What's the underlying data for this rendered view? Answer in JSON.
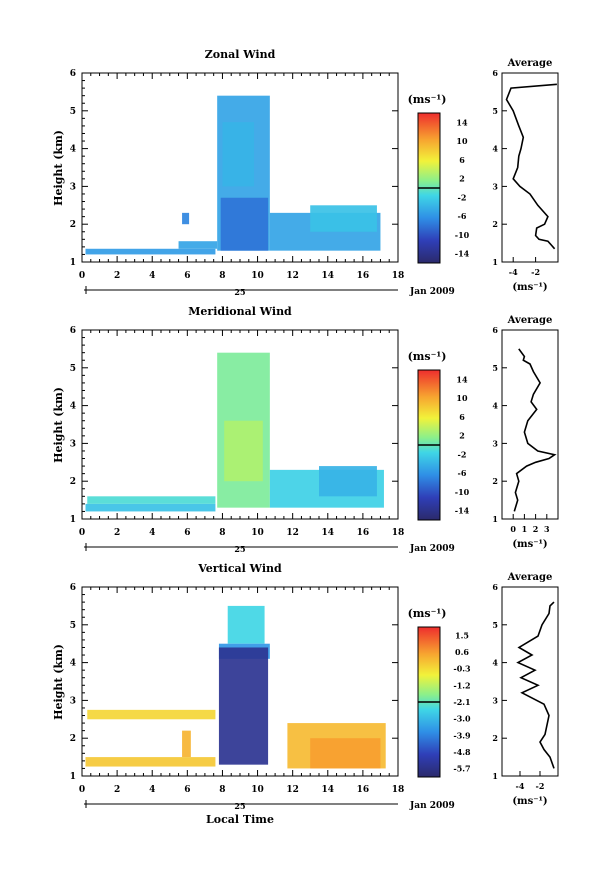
{
  "figure": {
    "shared_xlabel": "Local Time",
    "colorbar_unit": "(ms⁻¹)",
    "avg_unit": "(ms⁻¹)"
  },
  "chart_data": [
    {
      "type": "heatmap",
      "title": "Zonal Wind",
      "ylabel": "Height (km)",
      "xlim": [
        0,
        18
      ],
      "ylim": [
        1,
        6
      ],
      "xticks": [
        "0",
        "2",
        "4",
        "6",
        "8",
        "10",
        "12",
        "14",
        "16",
        "18"
      ],
      "yticks": [
        "1",
        "2",
        "3",
        "4",
        "5",
        "6"
      ],
      "date_marker": "25",
      "date_label": "Jan 2009",
      "colorbar": {
        "labels": [
          "14",
          "10",
          "6",
          "2",
          "-2",
          "-6",
          "-10",
          "-14"
        ],
        "range": [
          -16,
          16
        ],
        "ticks": [
          -14,
          -10,
          -6,
          -2,
          2,
          6,
          10,
          14
        ]
      },
      "data_regions": [
        {
          "x": [
            0.2,
            7.6
          ],
          "y": [
            1.2,
            1.35
          ],
          "value": -5.5
        },
        {
          "x": [
            5.5,
            7.7
          ],
          "y": [
            1.35,
            1.55
          ],
          "value": -5
        },
        {
          "x": [
            5.7,
            6.1
          ],
          "y": [
            2.0,
            2.3
          ],
          "value": -7
        },
        {
          "x": [
            7.7,
            10.7
          ],
          "y": [
            1.3,
            5.4
          ],
          "value": -5
        },
        {
          "x": [
            8.0,
            9.8
          ],
          "y": [
            3.0,
            4.7
          ],
          "value": -4
        },
        {
          "x": [
            7.9,
            10.6
          ],
          "y": [
            1.3,
            2.7
          ],
          "value": -8
        },
        {
          "x": [
            10.7,
            17.0
          ],
          "y": [
            1.3,
            2.3
          ],
          "value": -5
        },
        {
          "x": [
            13.0,
            16.8
          ],
          "y": [
            1.8,
            2.5
          ],
          "value": -3
        }
      ],
      "avg": {
        "title": "Average",
        "xlim": [
          -5,
          0
        ],
        "xticks": [
          "-4",
          "-2"
        ],
        "ylim": [
          1,
          6
        ],
        "yticks": [
          "1",
          "2",
          "3",
          "4",
          "5",
          "6"
        ],
        "x": [
          -0.3,
          -0.6,
          -0.9,
          -1.7,
          -2.0,
          -1.9,
          -1.2,
          -0.9,
          -1.8,
          -2.5,
          -3.4,
          -4.0,
          -3.6,
          -3.5,
          -3.3,
          -3.1,
          -3.5,
          -4.0,
          -4.6,
          -4.2,
          -0.1
        ],
        "y": [
          1.35,
          1.45,
          1.55,
          1.6,
          1.7,
          1.9,
          2.0,
          2.2,
          2.5,
          2.8,
          3.0,
          3.2,
          3.5,
          3.8,
          4.0,
          4.3,
          4.6,
          5.0,
          5.3,
          5.6,
          5.7
        ]
      }
    },
    {
      "type": "heatmap",
      "title": "Meridional Wind",
      "ylabel": "Height (km)",
      "xlim": [
        0,
        18
      ],
      "ylim": [
        1,
        6
      ],
      "xticks": [
        "0",
        "2",
        "4",
        "6",
        "8",
        "10",
        "12",
        "14",
        "16",
        "18"
      ],
      "yticks": [
        "1",
        "2",
        "3",
        "4",
        "5",
        "6"
      ],
      "date_marker": "25",
      "date_label": "Jan 2009",
      "colorbar": {
        "labels": [
          "14",
          "10",
          "6",
          "2",
          "-2",
          "-6",
          "-10",
          "-14"
        ],
        "range": [
          -16,
          16
        ],
        "ticks": [
          -14,
          -10,
          -6,
          -2,
          2,
          6,
          10,
          14
        ]
      },
      "data_regions": [
        {
          "x": [
            0.2,
            7.6
          ],
          "y": [
            1.2,
            1.4
          ],
          "value": -3
        },
        {
          "x": [
            0.3,
            7.6
          ],
          "y": [
            1.4,
            1.6
          ],
          "value": -1
        },
        {
          "x": [
            7.7,
            10.7
          ],
          "y": [
            1.3,
            5.4
          ],
          "value": 1
        },
        {
          "x": [
            8.1,
            10.3
          ],
          "y": [
            2.0,
            3.6
          ],
          "value": 3
        },
        {
          "x": [
            10.7,
            17.2
          ],
          "y": [
            1.3,
            2.3
          ],
          "value": -2
        },
        {
          "x": [
            13.5,
            16.8
          ],
          "y": [
            1.6,
            2.4
          ],
          "value": -4
        }
      ],
      "avg": {
        "title": "Average",
        "xlim": [
          -1,
          4
        ],
        "xticks": [
          "0",
          "1",
          "2",
          "3"
        ],
        "ylim": [
          1,
          6
        ],
        "yticks": [
          "1",
          "2",
          "3",
          "4",
          "5",
          "6"
        ],
        "x": [
          0.1,
          0.4,
          0.2,
          0.5,
          0.3,
          1.2,
          2.0,
          3.2,
          3.7,
          2.2,
          1.3,
          1.0,
          1.3,
          2.1,
          1.6,
          1.8,
          2.4,
          1.8,
          1.5,
          0.9,
          1.0,
          0.5
        ],
        "y": [
          1.2,
          1.5,
          1.7,
          2.0,
          2.2,
          2.4,
          2.5,
          2.6,
          2.7,
          2.8,
          3.0,
          3.3,
          3.6,
          3.9,
          4.1,
          4.3,
          4.6,
          4.9,
          5.1,
          5.2,
          5.3,
          5.5
        ]
      }
    },
    {
      "type": "heatmap",
      "title": "Vertical Wind",
      "ylabel": "Height (km)",
      "xlim": [
        0,
        18
      ],
      "ylim": [
        1,
        6
      ],
      "xticks": [
        "0",
        "2",
        "4",
        "6",
        "8",
        "10",
        "12",
        "14",
        "16",
        "18"
      ],
      "yticks": [
        "1",
        "2",
        "3",
        "4",
        "5",
        "6"
      ],
      "date_marker": "25",
      "date_label": "Jan 2009",
      "colorbar": {
        "labels": [
          "1.5",
          "0.6",
          "-0.3",
          "-1.2",
          "-2.1",
          "-3.0",
          "-3.9",
          "-4.8",
          "-5.7"
        ],
        "range": [
          -6.2,
          2.0
        ],
        "ticks": [
          1.5,
          0.6,
          -0.3,
          -1.2,
          -2.1,
          -3.0,
          -3.9,
          -4.8,
          -5.7
        ]
      },
      "data_regions": [
        {
          "x": [
            0.2,
            7.6
          ],
          "y": [
            1.25,
            1.5
          ],
          "value": 0.0
        },
        {
          "x": [
            0.3,
            7.6
          ],
          "y": [
            2.5,
            2.75
          ],
          "value": -0.2
        },
        {
          "x": [
            5.7,
            6.2
          ],
          "y": [
            1.5,
            2.2
          ],
          "value": 0.3
        },
        {
          "x": [
            8.3,
            10.4
          ],
          "y": [
            4.5,
            5.5
          ],
          "value": -2.5
        },
        {
          "x": [
            7.8,
            10.7
          ],
          "y": [
            4.1,
            4.5
          ],
          "value": -3.6
        },
        {
          "x": [
            7.8,
            10.6
          ],
          "y": [
            1.3,
            4.4
          ],
          "value": -5.6
        },
        {
          "x": [
            11.7,
            17.3
          ],
          "y": [
            1.2,
            2.4
          ],
          "value": 0.2
        },
        {
          "x": [
            13.0,
            17.0
          ],
          "y": [
            1.2,
            2.0
          ],
          "value": 0.6
        }
      ],
      "avg": {
        "title": "Average",
        "xlim": [
          -5.8,
          -0.2
        ],
        "xticks": [
          "-4",
          "-2"
        ],
        "ylim": [
          1,
          6
        ],
        "yticks": [
          "1",
          "2",
          "3",
          "4",
          "5",
          "6"
        ],
        "x": [
          -0.6,
          -1.0,
          -1.6,
          -2.0,
          -1.5,
          -1.1,
          -1.6,
          -3.8,
          -2.2,
          -3.9,
          -2.5,
          -4.2,
          -2.8,
          -4.1,
          -2.2,
          -1.8,
          -1.1,
          -1.0,
          -0.6
        ],
        "y": [
          1.2,
          1.5,
          1.7,
          1.9,
          2.1,
          2.6,
          2.9,
          3.2,
          3.4,
          3.6,
          3.8,
          4.0,
          4.2,
          4.4,
          4.7,
          5.0,
          5.3,
          5.5,
          5.6
        ]
      }
    }
  ]
}
